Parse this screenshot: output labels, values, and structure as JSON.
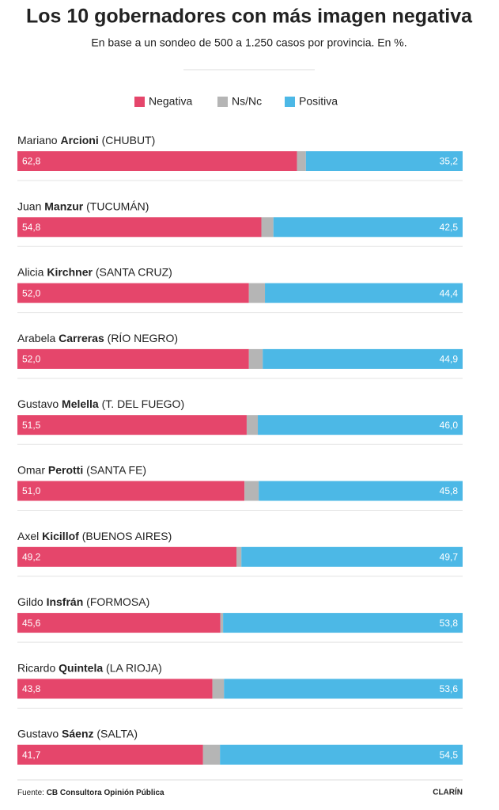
{
  "chart_data": {
    "type": "stacked-bar-horizontal",
    "title": "Los 10 gobernadores con más imagen negativa",
    "subtitle": "En base a un sondeo de 500 a 1.250 casos por provincia. En %.",
    "categories": [
      [
        "Mariano",
        "Arcioni",
        "(CHUBUT)"
      ],
      [
        "Juan",
        "Manzur",
        "(TUCUMÁN)"
      ],
      [
        "Alicia",
        "Kirchner",
        "(SANTA CRUZ)"
      ],
      [
        "Arabela",
        "Carreras",
        "(RÍO NEGRO)"
      ],
      [
        "Gustavo",
        "Melella",
        "(T. DEL FUEGO)"
      ],
      [
        "Omar",
        "Perotti",
        "(SANTA FE)"
      ],
      [
        "Axel",
        "Kicillof",
        "(BUENOS AIRES)"
      ],
      [
        "Gildo",
        "Insfrán",
        "(FORMOSA)"
      ],
      [
        "Ricardo",
        "Quintela",
        "(LA RIOJA)"
      ],
      [
        "Gustavo",
        "Sáenz",
        "(SALTA)"
      ]
    ],
    "series": [
      {
        "name": "Negativa",
        "color": "#e5466b",
        "values": [
          62.8,
          54.8,
          52.0,
          52.0,
          51.5,
          51.0,
          49.2,
          45.6,
          43.8,
          41.7
        ],
        "value_labels": [
          "62,8",
          "54,8",
          "52,0",
          "52,0",
          "51,5",
          "51,0",
          "49,2",
          "45,6",
          "43,8",
          "41,7"
        ]
      },
      {
        "name": "Ns/Nc",
        "color": "#b5b5b5",
        "values": [
          2.0,
          2.7,
          3.6,
          3.1,
          2.5,
          3.2,
          1.1,
          0.6,
          2.6,
          3.8
        ]
      },
      {
        "name": "Positiva",
        "color": "#4cb8e6",
        "values": [
          35.2,
          42.5,
          44.4,
          44.9,
          46.0,
          45.8,
          49.7,
          53.8,
          53.6,
          54.5
        ],
        "value_labels": [
          "35,2",
          "42,5",
          "44,4",
          "44,9",
          "46,0",
          "45,8",
          "49,7",
          "53,8",
          "53,6",
          "54,5"
        ]
      }
    ],
    "xlim": [
      0,
      100
    ],
    "source_label": "Fuente:",
    "source": "CB Consultora Opinión Pública",
    "brand": "CLARÍN"
  }
}
